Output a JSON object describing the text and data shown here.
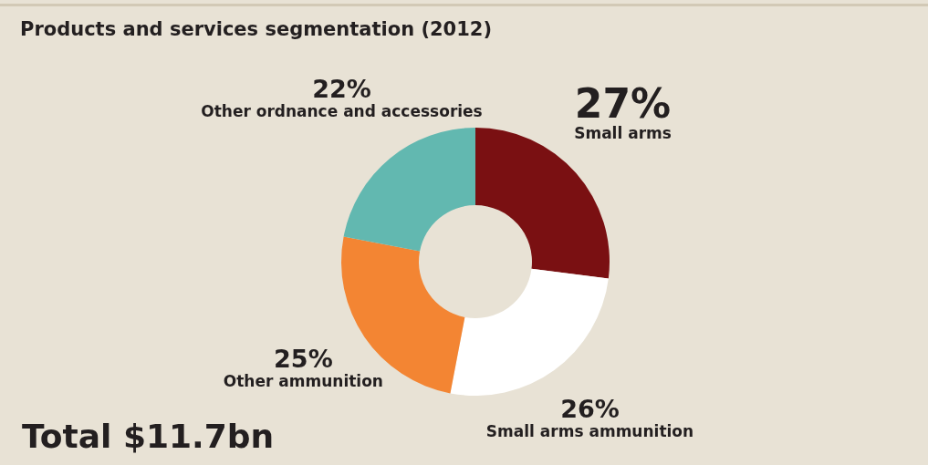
{
  "chart_data": {
    "type": "donut",
    "title": "Products and services segmentation (2012)",
    "categories": [
      "Small arms",
      "Small arms ammunition",
      "Other ammunition",
      "Other ordnance and accessories"
    ],
    "values": [
      27,
      26,
      25,
      22
    ],
    "value_labels": [
      "27%",
      "26%",
      "25%",
      "22%"
    ],
    "colors": [
      "#7a1012",
      "#ffffff",
      "#f38533",
      "#62b8b0"
    ],
    "annotations": [
      "Total $11.7bn"
    ]
  }
}
